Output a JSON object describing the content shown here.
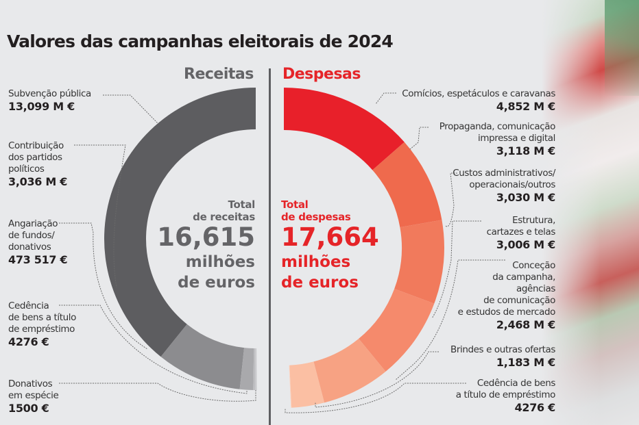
{
  "title": "Valores das campanhas eleitorais de 2024",
  "receitas": {
    "heading": "Receitas",
    "total_line1": "Total",
    "total_line2": "de receitas",
    "total_value": "16,615",
    "total_unit1": "milhões",
    "total_unit2": "de euros",
    "items": [
      {
        "label": [
          "Subvenção pública"
        ],
        "value": "13,099 M €"
      },
      {
        "label": [
          "Contribuição",
          "dos partidos",
          "políticos"
        ],
        "value": "3,036 M €"
      },
      {
        "label": [
          "Angariação",
          "de fundos/",
          "donativos"
        ],
        "value": "473 517 €"
      },
      {
        "label": [
          "Cedência",
          "de bens a título",
          "de empréstimo"
        ],
        "value": "4276 €"
      },
      {
        "label": [
          "Donativos",
          "em espécie"
        ],
        "value": "1500 €"
      }
    ]
  },
  "despesas": {
    "heading": "Despesas",
    "total_line1": "Total",
    "total_line2": "de despesas",
    "total_value": "17,664",
    "total_unit1": "milhões",
    "total_unit2": "de euros",
    "items": [
      {
        "label": [
          "Comícios, espetáculos e caravanas"
        ],
        "value": "4,852 M €"
      },
      {
        "label": [
          "Propaganda, comunicação",
          "impressa e digital"
        ],
        "value": "3,118 M €"
      },
      {
        "label": [
          "Custos administrativos/",
          "operacionais/outros"
        ],
        "value": "3,030 M €"
      },
      {
        "label": [
          "Estrutura,",
          "cartazes e telas"
        ],
        "value": "3,006 M €"
      },
      {
        "label": [
          "Conceção",
          "da campanha,",
          "agências",
          "de comunicação",
          "e estudos de mercado"
        ],
        "value": "2,468 M €"
      },
      {
        "label": [
          "Brindes e outras ofertas"
        ],
        "value": "1,183 M €"
      },
      {
        "label": [
          "Cedência de bens",
          "a título de empréstimo"
        ],
        "value": "4276 €"
      }
    ]
  },
  "colors": {
    "receitas": [
      "#5d5d60",
      "#8c8c8f",
      "#a9a9ac",
      "#bdbdc0",
      "#c9c9cc"
    ],
    "despesas": [
      "#e8202a",
      "#ef6a4d",
      "#f17a5c",
      "#f58a6c",
      "#f7a283",
      "#fbbfa3",
      "#fdd3c0"
    ],
    "receitas_text": "#646467",
    "despesas_text": "#e52428"
  },
  "chart_data": {
    "type": "pie",
    "title": "Valores das campanhas eleitorais de 2024",
    "units": "milhões de euros",
    "series": [
      {
        "name": "Receitas",
        "total": 16.615,
        "categories": [
          "Subvenção pública",
          "Contribuição dos partidos políticos",
          "Angariação de fundos/donativos",
          "Cedência de bens a título de empréstimo",
          "Donativos em espécie"
        ],
        "values": [
          13.099,
          3.036,
          0.473517,
          0.004276,
          0.0015
        ]
      },
      {
        "name": "Despesas",
        "total": 17.664,
        "categories": [
          "Comícios, espetáculos e caravanas",
          "Propaganda, comunicação impressa e digital",
          "Custos administrativos/operacionais/outros",
          "Estrutura, cartazes e telas",
          "Conceção da campanha, agências de comunicação e estudos de mercado",
          "Brindes e outras ofertas",
          "Cedência de bens a título de empréstimo"
        ],
        "values": [
          4.852,
          3.118,
          3.03,
          3.006,
          2.468,
          1.183,
          0.004276
        ]
      }
    ]
  }
}
